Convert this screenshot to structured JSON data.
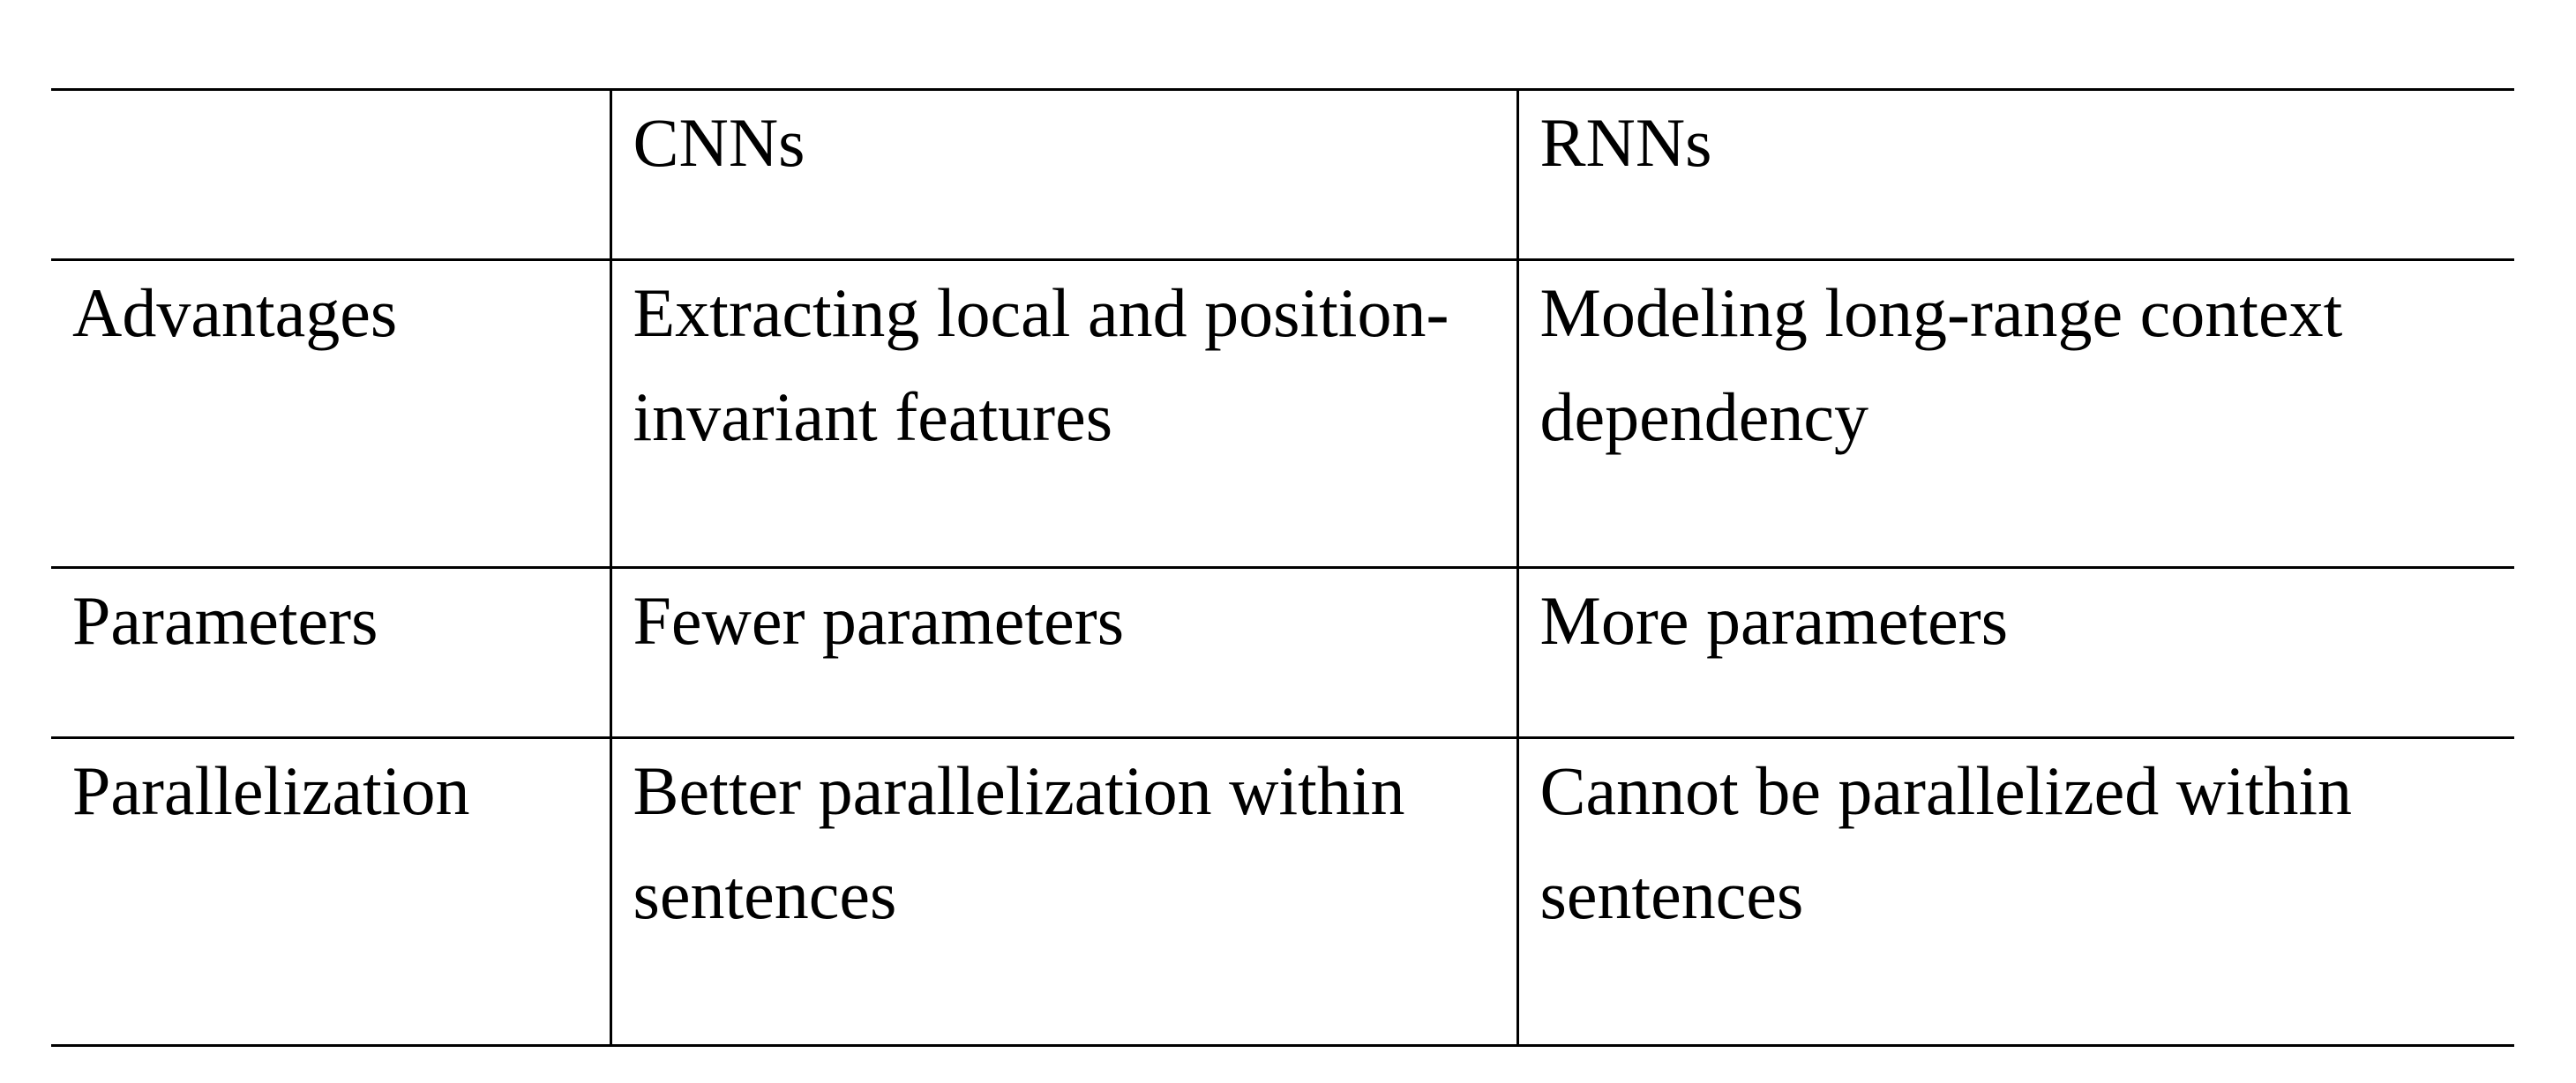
{
  "table": {
    "headers": [
      "",
      "CNNs",
      "RNNs"
    ],
    "rows": [
      {
        "label": "Advantages",
        "cnn": "Extracting local and position-invariant features",
        "rnn": "Modeling long-range context dependency"
      },
      {
        "label": "Parameters",
        "cnn": "Fewer parameters",
        "rnn": "More parameters"
      },
      {
        "label": "Parallelization",
        "cnn": "Better parallelization within sentences",
        "rnn": "Cannot be parallelized within sentences"
      }
    ]
  }
}
